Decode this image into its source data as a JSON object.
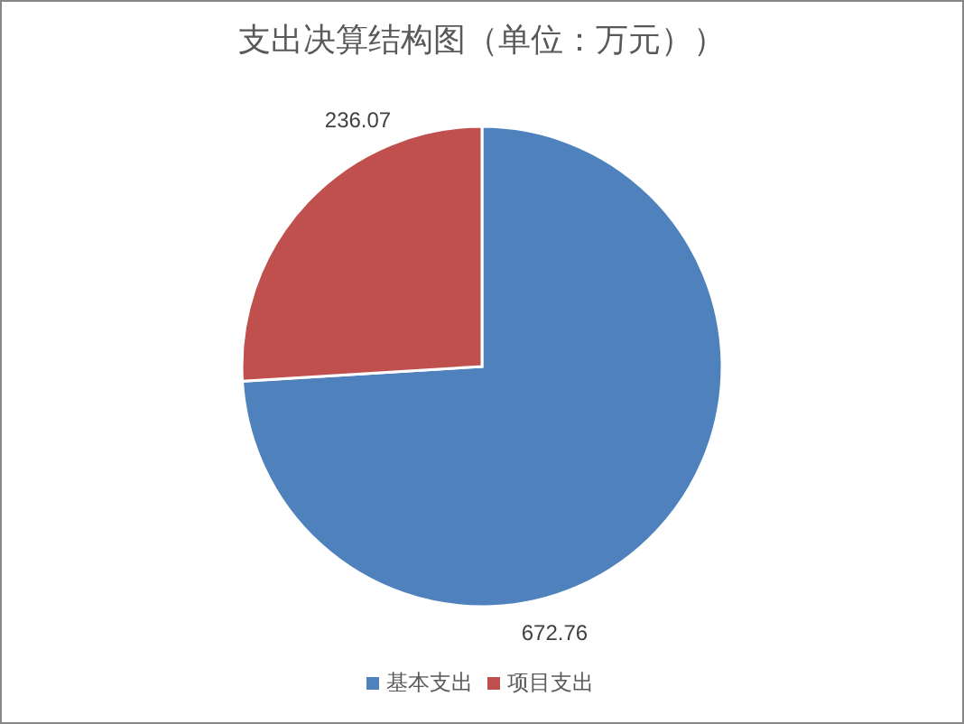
{
  "chart_data": {
    "type": "pie",
    "title": "支出决算结构图（单位：万元））",
    "categories": [
      "基本支出",
      "项目支出"
    ],
    "values": [
      672.76,
      236.07
    ],
    "colors": [
      "#4f81bd",
      "#c0504d"
    ],
    "data_labels": true,
    "legend": "bottom"
  }
}
